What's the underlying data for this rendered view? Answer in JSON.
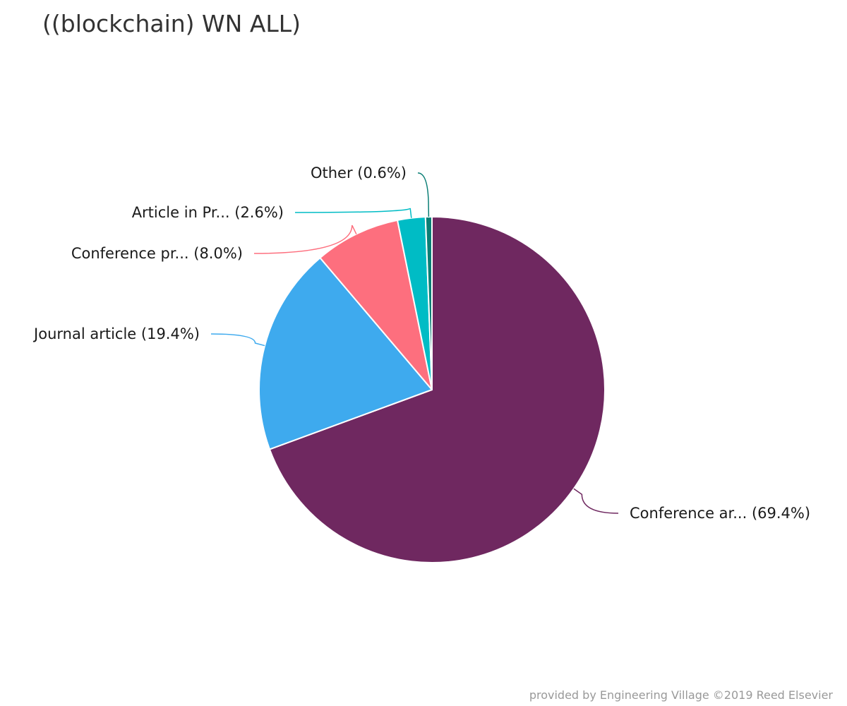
{
  "chart_data": {
    "type": "pie",
    "title": "((blockchain) WN ALL)",
    "slices": [
      {
        "label": "Conference ar... (69.4%)",
        "name": "Conference ar...",
        "value": 69.4,
        "color": "#6f2860"
      },
      {
        "label": "Journal article (19.4%)",
        "name": "Journal article",
        "value": 19.4,
        "color": "#3eaaee"
      },
      {
        "label": "Conference pr... (8.0%)",
        "name": "Conference pr...",
        "value": 8.0,
        "color": "#fd6f7e"
      },
      {
        "label": "Article in Pr... (2.6%)",
        "name": "Article in Pr...",
        "value": 2.6,
        "color": "#00bcc5"
      },
      {
        "label": "Other (0.6%)",
        "name": "Other",
        "value": 0.6,
        "color": "#0a7e75"
      }
    ]
  },
  "credits": "provided by Engineering Village ©2019 Reed Elsevier"
}
